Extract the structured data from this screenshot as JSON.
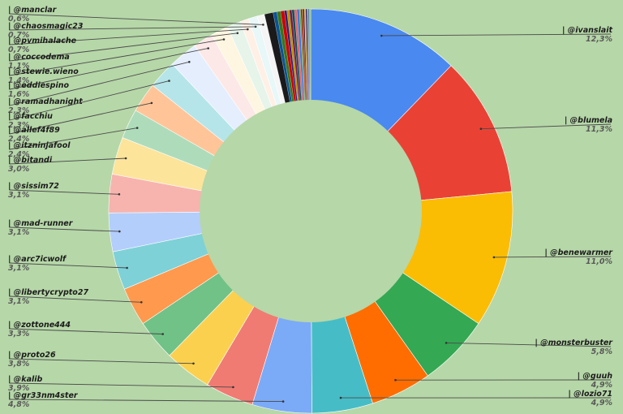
{
  "chart_data": {
    "type": "pie",
    "style": "donut",
    "title": "",
    "legend": "none",
    "grid": false,
    "slices": [
      {
        "label": "| @ivanslait",
        "value_text": "12,3%",
        "value": 12.3,
        "color": "#4a89f0"
      },
      {
        "label": "| @blumela",
        "value_text": "11,3%",
        "value": 11.3,
        "color": "#e94235"
      },
      {
        "label": "| @benewarmer",
        "value_text": "11,0%",
        "value": 11.0,
        "color": "#fbbc04"
      },
      {
        "label": "| @monsterbuster",
        "value_text": "5,8%",
        "value": 5.8,
        "color": "#34a853"
      },
      {
        "label": "| @guuh",
        "value_text": "4,9%",
        "value": 4.9,
        "color": "#ff6d01"
      },
      {
        "label": "| @lozio71",
        "value_text": "4,9%",
        "value": 4.9,
        "color": "#46bdc6"
      },
      {
        "label": "| @gr33nm4ster",
        "value_text": "4,8%",
        "value": 4.8,
        "color": "#7baaf7"
      },
      {
        "label": "| @kalib",
        "value_text": "3,9%",
        "value": 3.9,
        "color": "#f07b72"
      },
      {
        "label": "| @proto26",
        "value_text": "3,8%",
        "value": 3.8,
        "color": "#fcd04f"
      },
      {
        "label": "| @zottone444",
        "value_text": "3,3%",
        "value": 3.3,
        "color": "#71c287"
      },
      {
        "label": "| @libertycrypto27",
        "value_text": "3,1%",
        "value": 3.1,
        "color": "#ff994d"
      },
      {
        "label": "| @arc7icwolf",
        "value_text": "3,1%",
        "value": 3.1,
        "color": "#7ed1d7"
      },
      {
        "label": "| @mad-runner",
        "value_text": "3,1%",
        "value": 3.1,
        "color": "#b3cefb"
      },
      {
        "label": "| @sissim72",
        "value_text": "3,1%",
        "value": 3.1,
        "color": "#f7b4ae"
      },
      {
        "label": "| @bitandi",
        "value_text": "3,0%",
        "value": 3.0,
        "color": "#fde49b"
      },
      {
        "label": "| @itzninjafool",
        "value_text": "2,4%",
        "value": 2.4,
        "color": "#aedcba"
      },
      {
        "label": "| @allef4f89",
        "value_text": "2,4%",
        "value": 2.4,
        "color": "#ffc599"
      },
      {
        "label": "| @facchiu",
        "value_text": "2,3%",
        "value": 2.3,
        "color": "#b5e5e8"
      },
      {
        "label": "| @ramadhanight",
        "value_text": "2,3%",
        "value": 2.3,
        "color": "#e5eefd"
      },
      {
        "label": "| @eddiespino",
        "value_text": "1,6%",
        "value": 1.6,
        "color": "#fce8e6"
      },
      {
        "label": "| @stewie.wieno",
        "value_text": "1,4%",
        "value": 1.4,
        "color": "#fef6e0"
      },
      {
        "label": "| @coccodema",
        "value_text": "1,1%",
        "value": 1.1,
        "color": "#e6f4ea"
      },
      {
        "label": "| @pvmihalache",
        "value_text": "0,7%",
        "value": 0.7,
        "color": "#fff0e6"
      },
      {
        "label": "| @chaosmagic23",
        "value_text": "0,7%",
        "value": 0.7,
        "color": "#e8f7f8"
      },
      {
        "label": "| @manclar",
        "value_text": "0,6%",
        "value": 0.6,
        "color": "#f5f5f5"
      }
    ],
    "tail_slices": [
      {
        "value": 0.7,
        "color": "#1a1a1a"
      },
      {
        "value": 0.3,
        "color": "#0b5394"
      },
      {
        "value": 0.3,
        "color": "#38761d"
      },
      {
        "value": 0.3,
        "color": "#cc0000"
      },
      {
        "value": 0.2,
        "color": "#351c75"
      },
      {
        "value": 0.2,
        "color": "#bf9000"
      },
      {
        "value": 0.2,
        "color": "#741b47"
      },
      {
        "value": 0.2,
        "color": "#134f5c"
      },
      {
        "value": 0.2,
        "color": "#e06666"
      },
      {
        "value": 0.2,
        "color": "#3c78d8"
      },
      {
        "value": 0.1,
        "color": "#6aa84f"
      },
      {
        "value": 0.1,
        "color": "#a61c00"
      },
      {
        "value": 0.1,
        "color": "#783f04"
      },
      {
        "value": 0.1,
        "color": "#4c1130"
      },
      {
        "value": 0.1,
        "color": "#f1c232"
      },
      {
        "value": 0.1,
        "color": "#20124d"
      },
      {
        "value": 0.1,
        "color": "#8e7cc3"
      },
      {
        "value": 0.1,
        "color": "#45818e"
      },
      {
        "value": 0.1,
        "color": "#93c47d"
      }
    ]
  }
}
